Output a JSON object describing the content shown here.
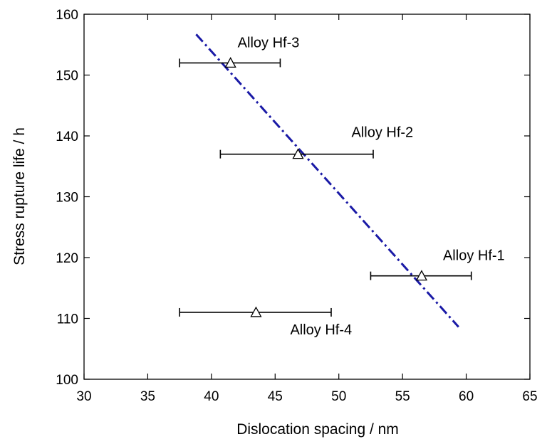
{
  "chart_data": {
    "type": "scatter",
    "title": "",
    "xlabel": "Dislocation spacing / nm",
    "ylabel": "Stress rupture life / h",
    "xlim": [
      30,
      65
    ],
    "ylim": [
      100,
      160
    ],
    "xticks": [
      30,
      35,
      40,
      45,
      50,
      55,
      60,
      65
    ],
    "yticks": [
      100,
      110,
      120,
      130,
      140,
      150,
      160
    ],
    "grid": false,
    "legend": "none",
    "series": [
      {
        "marker": "open-triangle",
        "color": "#000000",
        "points": [
          {
            "label": "Alloy Hf-1",
            "x": 56.5,
            "y": 117,
            "xerr_low": 52.5,
            "xerr_high": 60.4
          },
          {
            "label": "Alloy Hf-2",
            "x": 46.8,
            "y": 137,
            "xerr_low": 40.7,
            "xerr_high": 52.7
          },
          {
            "label": "Alloy Hf-3",
            "x": 41.5,
            "y": 152,
            "xerr_low": 37.5,
            "xerr_high": 45.4
          },
          {
            "label": "Alloy Hf-4",
            "x": 43.5,
            "y": 111,
            "xerr_low": 37.5,
            "xerr_high": 49.4
          }
        ]
      }
    ],
    "fit_line": {
      "style": "dash-dot",
      "color": "#1a1aa6",
      "x": [
        38.8,
        59.4
      ],
      "y": [
        156.7,
        108.6
      ]
    }
  }
}
